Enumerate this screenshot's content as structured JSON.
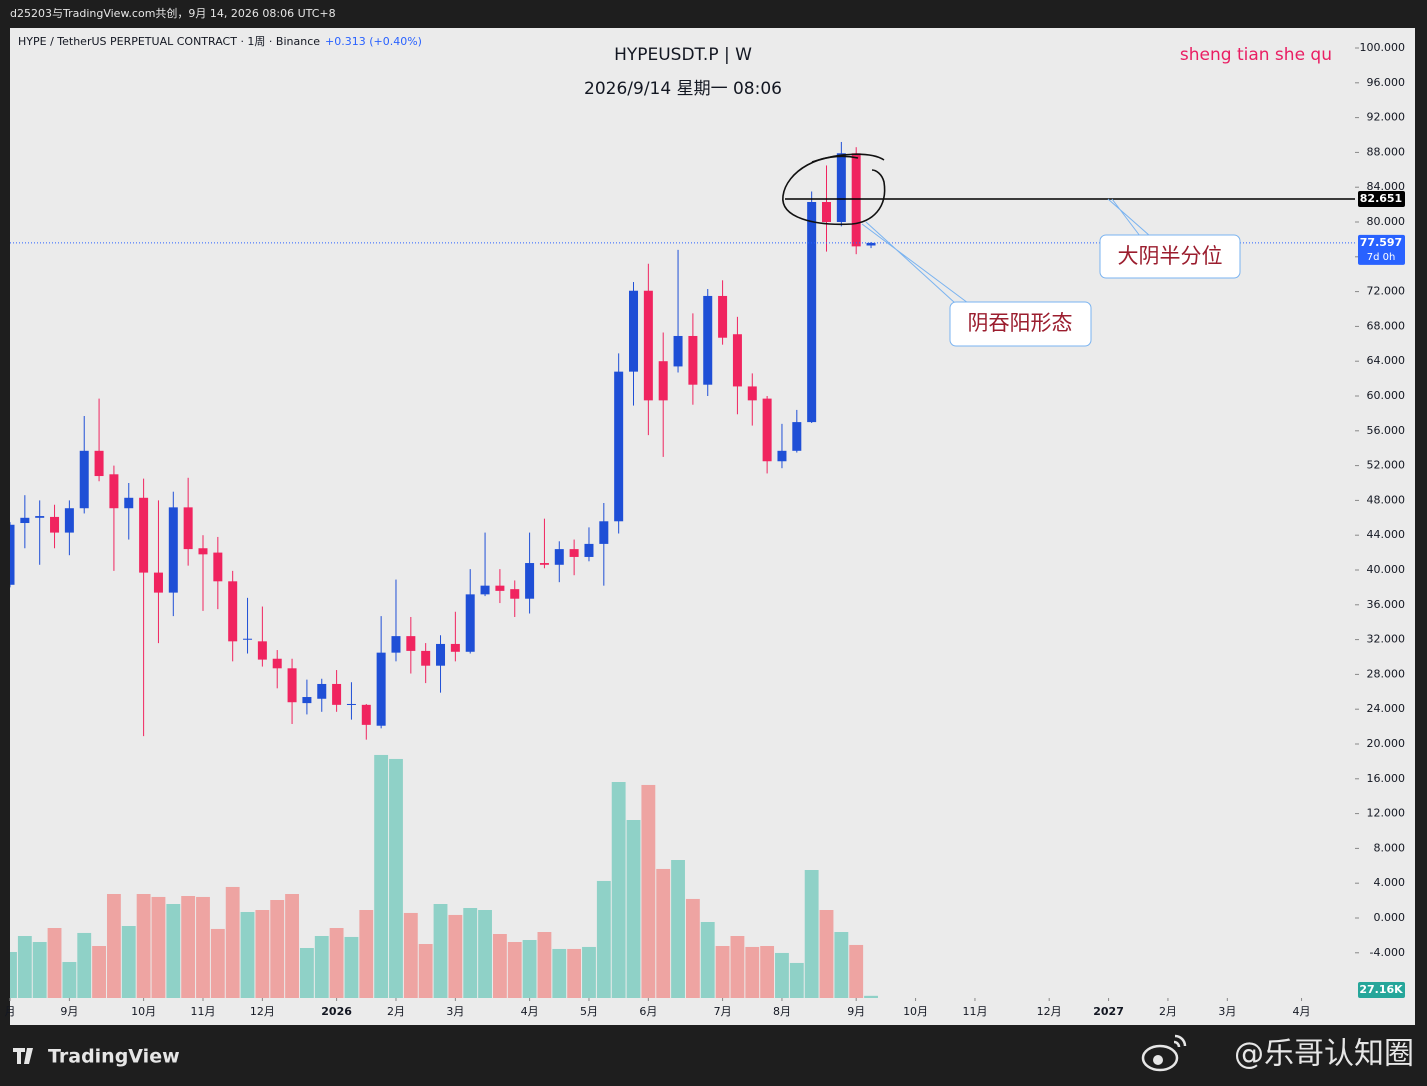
{
  "header": {
    "credit": "d25203与TradingView.com共创，9月 14, 2026 08:06 UTC+8",
    "symbol_line": "HYPE / TetherUS PERPETUAL CONTRACT · 1周 · Binance",
    "change": "+0.313 (+0.40%)"
  },
  "footer": {
    "brand": "TradingView",
    "watermark": "@乐哥认知圈"
  },
  "chart_data": {
    "type": "candlestick",
    "title": "HYPEUSDT.P | W",
    "subtitle": "2026/9/14 星期一 08:06",
    "signature": "sheng tian she qu",
    "x": [
      0,
      1,
      2,
      3,
      4,
      5,
      6,
      7,
      8,
      9,
      10,
      11,
      12,
      13,
      14,
      15,
      16,
      17,
      18,
      19,
      20,
      21,
      22,
      23,
      24,
      25,
      26,
      27,
      28,
      29,
      30,
      31,
      32,
      33,
      34,
      35,
      36,
      37,
      38,
      39,
      40,
      41,
      42,
      43,
      44,
      45,
      46,
      47,
      48,
      49,
      50,
      51,
      52,
      53,
      54,
      55,
      56,
      57,
      58
    ],
    "open": [
      38.3,
      45.4,
      46.0,
      46.1,
      44.3,
      47.1,
      53.7,
      51.0,
      47.1,
      48.3,
      39.7,
      37.4,
      47.2,
      42.5,
      42.0,
      38.7,
      32.0,
      31.8,
      29.8,
      28.7,
      24.7,
      25.2,
      26.9,
      24.5,
      24.5,
      22.1,
      30.5,
      32.4,
      30.7,
      29.0,
      31.5,
      30.6,
      37.2,
      38.2,
      37.8,
      36.7,
      40.8,
      40.6,
      42.4,
      41.5,
      43.0,
      45.6,
      62.8,
      72.1,
      64.0,
      63.4,
      66.9,
      61.3,
      71.5,
      67.1,
      61.1,
      59.7,
      52.5,
      53.7,
      57.0,
      82.3,
      80.0,
      87.9,
      77.3
    ],
    "high": [
      45.5,
      48.6,
      48.0,
      47.5,
      48.0,
      57.7,
      59.7,
      52.0,
      50.0,
      50.5,
      48.0,
      49.0,
      50.6,
      44.0,
      43.8,
      39.9,
      36.8,
      35.8,
      30.8,
      29.8,
      27.4,
      27.5,
      28.5,
      27.1,
      24.6,
      34.7,
      38.9,
      34.6,
      31.6,
      32.5,
      35.2,
      40.1,
      44.3,
      40.1,
      38.8,
      44.3,
      45.9,
      43.3,
      43.5,
      44.9,
      47.7,
      64.9,
      73.1,
      75.2,
      67.3,
      76.8,
      69.5,
      72.3,
      73.3,
      69.1,
      62.6,
      60.0,
      56.8,
      58.4,
      83.5,
      86.5,
      89.2,
      88.6,
      77.7
    ],
    "low": [
      38.0,
      42.5,
      40.6,
      42.5,
      41.7,
      46.5,
      50.2,
      39.9,
      43.5,
      20.9,
      31.6,
      34.7,
      40.5,
      35.3,
      35.5,
      29.5,
      30.4,
      28.9,
      26.4,
      22.3,
      23.4,
      23.7,
      23.7,
      22.8,
      20.5,
      21.8,
      29.5,
      28.1,
      27.0,
      25.9,
      29.5,
      30.4,
      37.0,
      36.2,
      34.6,
      35.0,
      40.2,
      38.6,
      39.4,
      41.0,
      38.2,
      44.2,
      58.9,
      55.5,
      53.0,
      62.7,
      59.0,
      60.0,
      65.9,
      57.9,
      56.6,
      51.1,
      51.7,
      53.5,
      56.9,
      76.6,
      79.5,
      76.3,
      77.0
    ],
    "close": [
      45.2,
      46.0,
      46.2,
      44.3,
      47.1,
      53.7,
      50.8,
      47.1,
      48.3,
      39.7,
      37.4,
      47.2,
      42.4,
      41.8,
      38.7,
      31.8,
      32.1,
      29.7,
      28.7,
      24.8,
      25.4,
      26.9,
      24.5,
      24.6,
      22.2,
      30.5,
      32.4,
      30.7,
      29.0,
      31.5,
      30.6,
      37.2,
      38.2,
      37.6,
      36.7,
      40.8,
      40.6,
      42.4,
      41.5,
      43.0,
      45.6,
      62.8,
      72.1,
      59.5,
      59.5,
      66.9,
      61.3,
      71.5,
      66.7,
      61.1,
      59.5,
      52.5,
      53.7,
      57.0,
      82.3,
      80.0,
      87.9,
      77.2,
      77.597
    ],
    "up_color": "#1f4fd6",
    "down_color": "#f0245f",
    "volume": {
      "values": [
        575,
        775,
        700,
        875,
        450,
        813,
        650,
        1300,
        900,
        1300,
        1263,
        1175,
        1275,
        1263,
        863,
        1388,
        1075,
        1100,
        1225,
        1300,
        625,
        775,
        875,
        763,
        1100,
        3038,
        2988,
        1063,
        675,
        1175,
        1038,
        1125,
        1100,
        800,
        700,
        725,
        825,
        613,
        613,
        638,
        1463,
        2700,
        2225,
        2663,
        1613,
        1725,
        1238,
        950,
        650,
        775,
        638,
        650,
        563,
        438,
        1600,
        1100,
        825,
        663,
        27.16
      ],
      "last_value_label": "27.16K",
      "up_color": "#8fd1c7",
      "down_color": "#eea4a2"
    },
    "xlim": [
      0,
      90.6
    ],
    "xticks": [
      {
        "value": 0,
        "label": "月"
      },
      {
        "value": 4,
        "label": "9月"
      },
      {
        "value": 9,
        "label": "10月"
      },
      {
        "value": 13,
        "label": "11月"
      },
      {
        "value": 17,
        "label": "12月"
      },
      {
        "value": 22,
        "label": "2026"
      },
      {
        "value": 26,
        "label": "2月"
      },
      {
        "value": 30,
        "label": "3月"
      },
      {
        "value": 35,
        "label": "4月"
      },
      {
        "value": 39,
        "label": "5月"
      },
      {
        "value": 43,
        "label": "6月"
      },
      {
        "value": 48,
        "label": "7月"
      },
      {
        "value": 52,
        "label": "8月"
      },
      {
        "value": 57,
        "label": "9月"
      },
      {
        "value": 61,
        "label": "10月"
      },
      {
        "value": 65,
        "label": "11月"
      },
      {
        "value": 70,
        "label": "12月"
      },
      {
        "value": 74,
        "label": "2027"
      },
      {
        "value": 78,
        "label": "2月"
      },
      {
        "value": 82,
        "label": "3月"
      },
      {
        "value": 87,
        "label": "4月"
      }
    ],
    "ylim": [
      -12.3,
      102.3
    ],
    "yticks": [
      {
        "value": 100,
        "label": "100.000"
      },
      {
        "value": 96,
        "label": "96.000"
      },
      {
        "value": 92,
        "label": "92.000"
      },
      {
        "value": 88,
        "label": "88.000"
      },
      {
        "value": 84,
        "label": "84.000"
      },
      {
        "value": 80,
        "label": "80.000"
      },
      {
        "value": 76,
        "label": "76.000"
      },
      {
        "value": 72,
        "label": "72.000"
      },
      {
        "value": 68,
        "label": "68.000"
      },
      {
        "value": 64,
        "label": "64.000"
      },
      {
        "value": 60,
        "label": "60.000"
      },
      {
        "value": 56,
        "label": "56.000"
      },
      {
        "value": 52,
        "label": "52.000"
      },
      {
        "value": 48,
        "label": "48.000"
      },
      {
        "value": 44,
        "label": "44.000"
      },
      {
        "value": 40,
        "label": "40.000"
      },
      {
        "value": 36,
        "label": "36.000"
      },
      {
        "value": 32,
        "label": "32.000"
      },
      {
        "value": 28,
        "label": "28.000"
      },
      {
        "value": 24,
        "label": "24.000"
      },
      {
        "value": 20,
        "label": "20.000"
      },
      {
        "value": 16,
        "label": "16.000"
      },
      {
        "value": 12,
        "label": "12.000"
      },
      {
        "value": 8,
        "label": "8.000"
      },
      {
        "value": 4,
        "label": "4.000"
      },
      {
        "value": 0,
        "label": "0.000"
      },
      {
        "value": -4,
        "label": "-4.000"
      }
    ],
    "level": 82.651,
    "last_price": 77.597,
    "countdown": "7d 0h",
    "annotations": [
      "大阴半分位",
      "阴吞阳形态"
    ]
  }
}
